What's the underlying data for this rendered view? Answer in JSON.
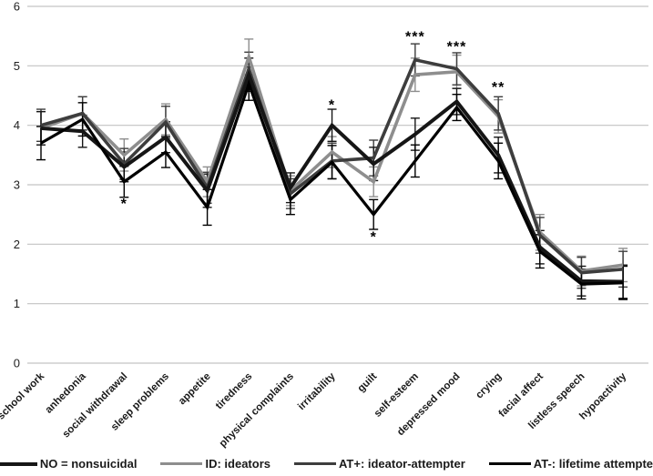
{
  "figure": {
    "background": "#ffffff",
    "gridline_color": "#c3c3c3"
  },
  "chart_data": {
    "type": "line",
    "title": "",
    "xlabel": "",
    "ylabel": "",
    "ylim": [
      0,
      6
    ],
    "yticks": [
      0,
      1,
      2,
      3,
      4,
      5,
      6
    ],
    "grid": true,
    "legend_position": "bottom",
    "categories": [
      "school work",
      "anhedonia",
      "social withdrawal",
      "sleep problems",
      "appetite",
      "tiredness",
      "physical complaints",
      "irritability",
      "guilt",
      "self-esteem",
      "depressed mood",
      "crying",
      "facial affect",
      "listless speech",
      "hypoactivity"
    ],
    "series": [
      {
        "name": "NO = nonsuicidal",
        "color": "#161616",
        "line_width": 4,
        "values": [
          3.95,
          3.9,
          3.3,
          3.8,
          2.9,
          4.85,
          2.95,
          4.0,
          3.35,
          3.85,
          4.4,
          3.5,
          1.95,
          1.38,
          1.37
        ],
        "errors": [
          0.28,
          0.27,
          0.25,
          0.26,
          0.28,
          0.28,
          0.25,
          0.27,
          0.28,
          0.27,
          0.22,
          0.3,
          0.28,
          0.25,
          0.28
        ]
      },
      {
        "name": "ID: ideators",
        "color": "#8e8e8e",
        "line_width": 3.6,
        "values": [
          3.95,
          4.2,
          3.5,
          4.1,
          3.05,
          5.15,
          2.9,
          3.55,
          3.05,
          4.85,
          4.9,
          4.15,
          2.2,
          1.55,
          1.65
        ],
        "errors": [
          0.28,
          0.28,
          0.27,
          0.26,
          0.25,
          0.3,
          0.25,
          0.26,
          0.25,
          0.28,
          0.28,
          0.28,
          0.3,
          0.25,
          0.28
        ]
      },
      {
        "name": "AT+: ideator-attempter",
        "color": "#3d3d3d",
        "line_width": 3.6,
        "values": [
          4.0,
          4.2,
          3.35,
          4.05,
          2.95,
          4.95,
          2.85,
          3.4,
          3.45,
          5.1,
          4.95,
          4.2,
          2.15,
          1.52,
          1.58
        ],
        "errors": [
          0.27,
          0.28,
          0.26,
          0.27,
          0.26,
          0.28,
          0.25,
          0.3,
          0.3,
          0.27,
          0.27,
          0.28,
          0.3,
          0.26,
          0.3
        ]
      },
      {
        "name": "AT-: lifetime attempter",
        "color": "#000000",
        "line_width": 3.2,
        "values": [
          3.7,
          4.1,
          3.05,
          3.55,
          2.62,
          4.7,
          2.75,
          3.38,
          2.5,
          3.4,
          4.3,
          3.4,
          1.88,
          1.33,
          1.35
        ],
        "errors": [
          0.28,
          0.28,
          0.26,
          0.26,
          0.3,
          0.28,
          0.25,
          0.28,
          0.25,
          0.27,
          0.22,
          0.3,
          0.28,
          0.25,
          0.28
        ]
      }
    ],
    "annotations": [
      {
        "text": "*",
        "category_index": 2,
        "y": 2.74,
        "position": "below"
      },
      {
        "text": "*",
        "category_index": 7,
        "y": 4.4,
        "position": "above"
      },
      {
        "text": "*",
        "category_index": 8,
        "y": 2.18,
        "position": "below"
      },
      {
        "text": "***",
        "category_index": 9,
        "y": 5.55,
        "position": "above"
      },
      {
        "text": "***",
        "category_index": 10,
        "y": 5.38,
        "position": "above"
      },
      {
        "text": "**",
        "category_index": 11,
        "y": 4.7,
        "position": "above"
      }
    ]
  }
}
